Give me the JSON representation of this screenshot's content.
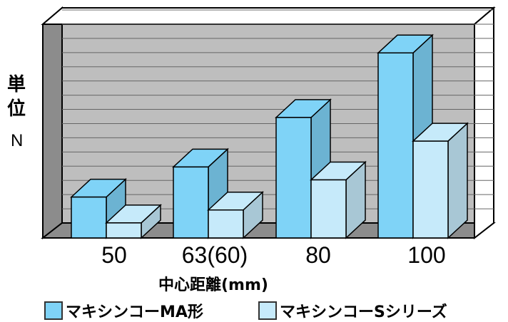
{
  "chart_data": {
    "type": "bar",
    "categories": [
      "50",
      "63(60)",
      "80",
      "100"
    ],
    "series": [
      {
        "name": "マキシンコーMA形",
        "values": [
          1.9,
          3.3,
          5.6,
          8.6
        ],
        "color": "#7fd3f7"
      },
      {
        "name": "マキシンコーSシリーズ",
        "values": [
          0.7,
          1.3,
          2.7,
          4.5
        ],
        "color": "#c6eafa"
      }
    ],
    "ylabel": [
      "単",
      "位",
      "N"
    ],
    "xlabel": "中心距離(mm)",
    "ylim": [
      0,
      10
    ],
    "grid": true,
    "legend": "bottom",
    "wall_color": "#bebebe",
    "side_wall_color": "#8c8c8c"
  }
}
